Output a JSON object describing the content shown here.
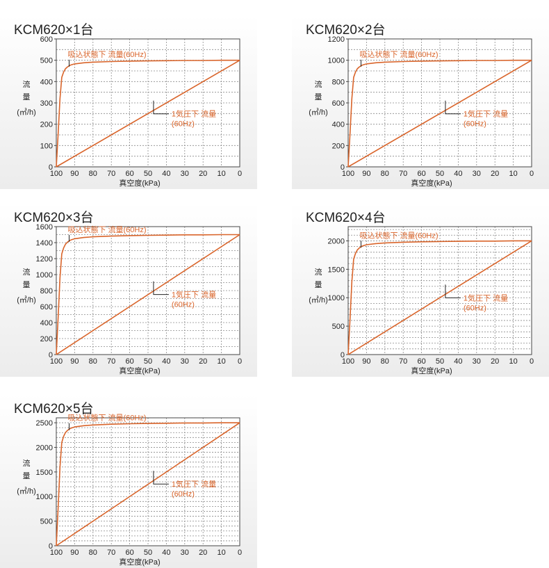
{
  "chart_data": [
    {
      "type": "line",
      "title": "KCM620×1台",
      "xlabel": "真空度(kPa)",
      "ylabel": [
        "流",
        "量",
        "(㎥/h)"
      ],
      "xlim": [
        100,
        0
      ],
      "ylim": [
        0,
        600
      ],
      "xticks": [
        100,
        90,
        80,
        70,
        60,
        50,
        40,
        30,
        20,
        10,
        0
      ],
      "yticks": [
        0,
        100,
        200,
        300,
        400,
        500,
        600
      ],
      "series": [
        {
          "name": "吸込状態下 流量(60Hz)",
          "x": [
            100,
            99,
            98,
            97,
            96,
            95,
            94,
            93,
            92,
            90,
            85,
            80,
            70,
            60,
            50,
            40,
            30,
            20,
            10,
            0
          ],
          "values": [
            0,
            150,
            320,
            420,
            445,
            460,
            468,
            474,
            478,
            483,
            488,
            491,
            494,
            496,
            497,
            498,
            499,
            499,
            500,
            500
          ]
        },
        {
          "name": "1気圧下 流量(60Hz)",
          "x": [
            100,
            0
          ],
          "values": [
            0,
            500
          ]
        }
      ],
      "annotations": [
        {
          "text": "吸込状態下 流量(60Hz)",
          "x": 93,
          "y": 470
        },
        {
          "text": [
            "1気圧下 流量",
            "(60Hz)"
          ],
          "x": 47,
          "y": 265
        }
      ],
      "grid": true
    },
    {
      "type": "line",
      "title": "KCM620×2台",
      "xlabel": "真空度(kPa)",
      "ylabel": [
        "流",
        "量",
        "(㎥/h)"
      ],
      "xlim": [
        100,
        0
      ],
      "ylim": [
        0,
        1200
      ],
      "xticks": [
        100,
        90,
        80,
        70,
        60,
        50,
        40,
        30,
        20,
        10,
        0
      ],
      "yticks": [
        0,
        200,
        400,
        600,
        800,
        1000,
        1200
      ],
      "series": [
        {
          "name": "吸込状態下 流量(60Hz)",
          "x": [
            100,
            99,
            98,
            97,
            96,
            95,
            94,
            93,
            92,
            90,
            85,
            80,
            70,
            60,
            50,
            40,
            30,
            20,
            10,
            0
          ],
          "values": [
            0,
            300,
            640,
            840,
            890,
            920,
            936,
            948,
            956,
            966,
            976,
            982,
            988,
            992,
            994,
            996,
            998,
            998,
            1000,
            1000
          ]
        },
        {
          "name": "1気圧下 流量(60Hz)",
          "x": [
            100,
            0
          ],
          "values": [
            0,
            1000
          ]
        }
      ],
      "annotations": [
        {
          "text": "吸込状態下 流量(60Hz)",
          "x": 93,
          "y": 940
        },
        {
          "text": [
            "1気圧下 流量",
            "(60Hz)"
          ],
          "x": 47,
          "y": 530
        }
      ],
      "grid": true
    },
    {
      "type": "line",
      "title": "KCM620×3台",
      "xlabel": "真空度(kPa)",
      "ylabel": [
        "流",
        "量",
        "(㎥/h)"
      ],
      "xlim": [
        100,
        0
      ],
      "ylim": [
        0,
        1600
      ],
      "xticks": [
        100,
        90,
        80,
        70,
        60,
        50,
        40,
        30,
        20,
        10,
        0
      ],
      "yticks": [
        0,
        200,
        400,
        600,
        800,
        1000,
        1200,
        1400,
        1600
      ],
      "series": [
        {
          "name": "吸込状態下 流量(60Hz)",
          "x": [
            100,
            99,
            98,
            97,
            96,
            95,
            94,
            93,
            92,
            90,
            85,
            80,
            70,
            60,
            50,
            40,
            30,
            20,
            10,
            0
          ],
          "values": [
            0,
            450,
            960,
            1260,
            1335,
            1380,
            1404,
            1422,
            1434,
            1449,
            1464,
            1473,
            1482,
            1488,
            1491,
            1494,
            1497,
            1497,
            1500,
            1500
          ]
        },
        {
          "name": "1気圧下 流量(60Hz)",
          "x": [
            100,
            0
          ],
          "values": [
            0,
            1500
          ]
        }
      ],
      "annotations": [
        {
          "text": "吸込状態下 流量(60Hz)",
          "x": 93,
          "y": 1410
        },
        {
          "text": [
            "1気圧下 流量",
            "(60Hz)"
          ],
          "x": 47,
          "y": 795
        }
      ],
      "grid": true
    },
    {
      "type": "line",
      "title": "KCM620×4台",
      "xlabel": "真空度(kPa)",
      "ylabel": [
        "流",
        "量",
        "(㎥/h)"
      ],
      "xlim": [
        100,
        0
      ],
      "ylim": [
        0,
        2250
      ],
      "xticks": [
        100,
        90,
        80,
        70,
        60,
        50,
        40,
        30,
        20,
        10,
        0
      ],
      "yticks": [
        0,
        500,
        1000,
        1500,
        2000
      ],
      "series": [
        {
          "name": "吸込状態下 流量(60Hz)",
          "x": [
            100,
            99,
            98,
            97,
            96,
            95,
            94,
            93,
            92,
            90,
            85,
            80,
            70,
            60,
            50,
            40,
            30,
            20,
            10,
            0
          ],
          "values": [
            0,
            600,
            1280,
            1680,
            1780,
            1840,
            1872,
            1896,
            1912,
            1932,
            1952,
            1964,
            1976,
            1984,
            1988,
            1992,
            1996,
            1996,
            2000,
            2000
          ]
        },
        {
          "name": "1気圧下 流量(60Hz)",
          "x": [
            100,
            0
          ],
          "values": [
            0,
            2000
          ]
        }
      ],
      "annotations": [
        {
          "text": "吸込状態下 流量(60Hz)",
          "x": 93,
          "y": 1880
        },
        {
          "text": [
            "1気圧下 流量",
            "(60Hz)"
          ],
          "x": 47,
          "y": 1060
        }
      ],
      "grid": true
    },
    {
      "type": "line",
      "title": "KCM620×5台",
      "xlabel": "真空度(kPa)",
      "ylabel": [
        "流",
        "量",
        "(㎥/h)"
      ],
      "xlim": [
        100,
        0
      ],
      "ylim": [
        0,
        2600
      ],
      "xticks": [
        100,
        90,
        80,
        70,
        60,
        50,
        40,
        30,
        20,
        10,
        0
      ],
      "yticks": [
        0,
        500,
        1000,
        1500,
        2000,
        2500
      ],
      "series": [
        {
          "name": "吸込状態下 流量(60Hz)",
          "x": [
            100,
            99,
            98,
            97,
            96,
            95,
            94,
            93,
            92,
            90,
            85,
            80,
            70,
            60,
            50,
            40,
            30,
            20,
            10,
            0
          ],
          "values": [
            0,
            750,
            1600,
            2100,
            2225,
            2300,
            2340,
            2370,
            2390,
            2415,
            2440,
            2455,
            2470,
            2480,
            2485,
            2490,
            2495,
            2495,
            2500,
            2500
          ]
        },
        {
          "name": "1気圧下 流量(60Hz)",
          "x": [
            100,
            0
          ],
          "values": [
            0,
            2500
          ]
        }
      ],
      "annotations": [
        {
          "text": "吸込状態下 流量(60Hz)",
          "x": 93,
          "y": 2350
        },
        {
          "text": [
            "1気圧下 流量",
            "(60Hz)"
          ],
          "x": 47,
          "y": 1325
        }
      ],
      "grid": true
    }
  ],
  "colors": {
    "line": "#d9642a",
    "annotation": "#d9642a",
    "grid": "#8a8a8a",
    "axis": "#444444",
    "text": "#222222"
  }
}
